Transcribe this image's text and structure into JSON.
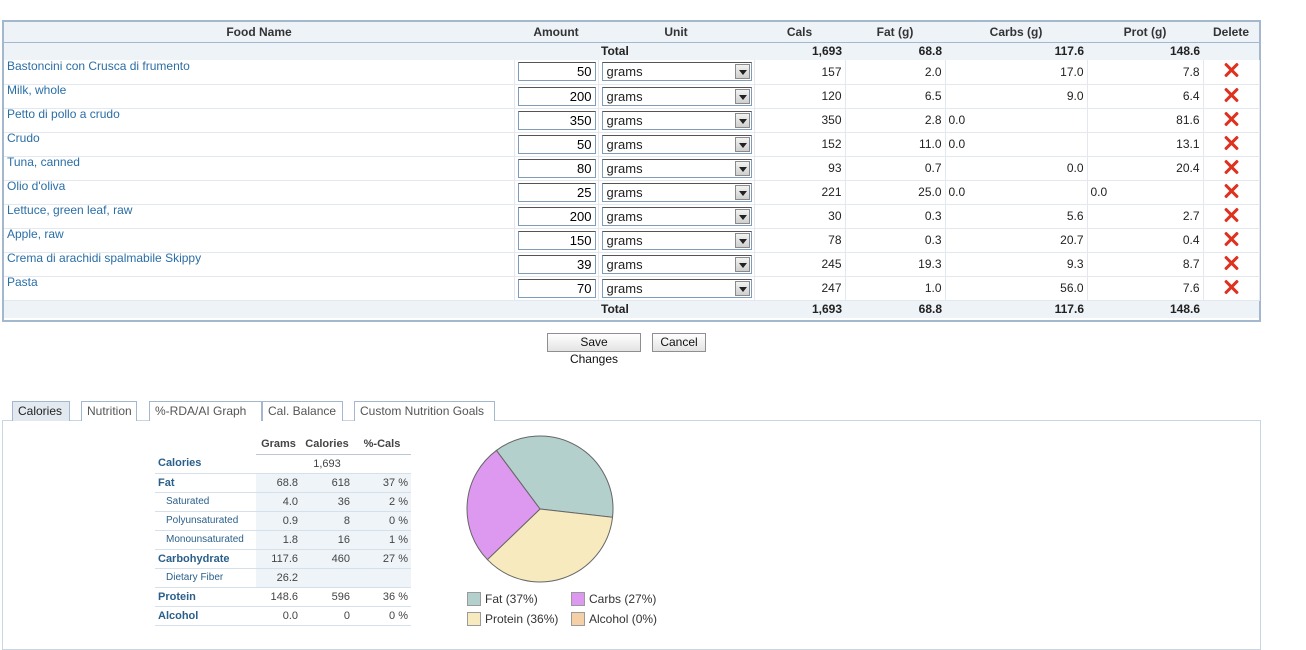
{
  "table": {
    "headers": {
      "food_name": "Food Name",
      "amount": "Amount",
      "unit": "Unit",
      "cals": "Cals",
      "fat": "Fat (g)",
      "carbs": "Carbs (g)",
      "prot": "Prot (g)",
      "delete": "Delete"
    },
    "total_label": "Total",
    "totals": {
      "cals": "1,693",
      "fat": "68.8",
      "carbs": "117.6",
      "prot": "148.6"
    },
    "rows": [
      {
        "name": "Bastoncini con Crusca di frumento",
        "amount": "50",
        "unit": "grams",
        "cals": "157",
        "fat": "2.0",
        "carbs": "17.0",
        "prot": "7.8"
      },
      {
        "name": "Milk, whole",
        "amount": "200",
        "unit": "grams",
        "cals": "120",
        "fat": "6.5",
        "carbs": "9.0",
        "prot": "6.4"
      },
      {
        "name": "Petto di pollo a crudo",
        "amount": "350",
        "unit": "grams",
        "cals": "350",
        "fat": "2.8",
        "fat_extra": "0.0",
        "carbs": "",
        "prot": "81.6"
      },
      {
        "name": "Crudo",
        "amount": "50",
        "unit": "grams",
        "cals": "152",
        "fat": "11.0",
        "fat_extra": "0.0",
        "carbs": "",
        "prot": "13.1"
      },
      {
        "name": "Tuna, canned",
        "amount": "80",
        "unit": "grams",
        "cals": "93",
        "fat": "0.7",
        "carbs": "0.0",
        "prot": "20.4"
      },
      {
        "name": "Olio d'oliva",
        "amount": "25",
        "unit": "grams",
        "cals": "221",
        "fat": "25.0",
        "fat_extra": "0.0",
        "carbs": "",
        "carbs_extra": "0.0",
        "prot": ""
      },
      {
        "name": "Lettuce, green leaf, raw",
        "amount": "200",
        "unit": "grams",
        "cals": "30",
        "fat": "0.3",
        "carbs": "5.6",
        "prot": "2.7"
      },
      {
        "name": "Apple, raw",
        "amount": "150",
        "unit": "grams",
        "cals": "78",
        "fat": "0.3",
        "carbs": "20.7",
        "prot": "0.4"
      },
      {
        "name": "Crema di arachidi spalmabile Skippy",
        "amount": "39",
        "unit": "grams",
        "cals": "245",
        "fat": "19.3",
        "carbs": "9.3",
        "prot": "8.7"
      },
      {
        "name": "Pasta",
        "amount": "70",
        "unit": "grams",
        "cals": "247",
        "fat": "1.0",
        "carbs": "56.0",
        "prot": "7.6"
      }
    ]
  },
  "buttons": {
    "save": "Save Changes",
    "cancel": "Cancel"
  },
  "tabs": [
    "Calories",
    "Nutrition",
    "%-RDA/AI Graph",
    "Cal. Balance",
    "Custom Nutrition Goals"
  ],
  "summary": {
    "headers": [
      "Grams",
      "Calories",
      "%-Cals"
    ],
    "rows": [
      {
        "label": "Calories",
        "grams": "",
        "calories": "1,693",
        "pct": ""
      },
      {
        "label": "Fat",
        "grams": "68.8",
        "calories": "618",
        "pct": "37 %"
      },
      {
        "label": "Saturated",
        "grams": "4.0",
        "calories": "36",
        "pct": "2 %"
      },
      {
        "label": "Polyunsaturated",
        "grams": "0.9",
        "calories": "8",
        "pct": "0 %"
      },
      {
        "label": "Monounsaturated",
        "grams": "1.8",
        "calories": "16",
        "pct": "1 %"
      },
      {
        "label": "Carbohydrate",
        "grams": "117.6",
        "calories": "460",
        "pct": "27 %"
      },
      {
        "label": "Dietary Fiber",
        "grams": "26.2",
        "calories": "",
        "pct": ""
      },
      {
        "label": "Protein",
        "grams": "148.6",
        "calories": "596",
        "pct": "36 %"
      },
      {
        "label": "Alcohol",
        "grams": "0.0",
        "calories": "0",
        "pct": "0 %"
      }
    ]
  },
  "chart_data": {
    "type": "pie",
    "slices": [
      {
        "name": "Fat",
        "value": 37,
        "color": "#b3d0cd"
      },
      {
        "name": "Carbs",
        "value": 27,
        "color": "#dd99f0"
      },
      {
        "name": "Protein",
        "value": 36,
        "color": "#f7eabe"
      },
      {
        "name": "Alcohol",
        "value": 0,
        "color": "#f5cfa6"
      }
    ],
    "legend": [
      {
        "label": "Fat",
        "pct": "(37%)"
      },
      {
        "label": "Carbs",
        "pct": "(27%)"
      },
      {
        "label": "Protein",
        "pct": "(36%)"
      },
      {
        "label": "Alcohol",
        "pct": "(0%)"
      }
    ],
    "legend_position": "bottom"
  }
}
